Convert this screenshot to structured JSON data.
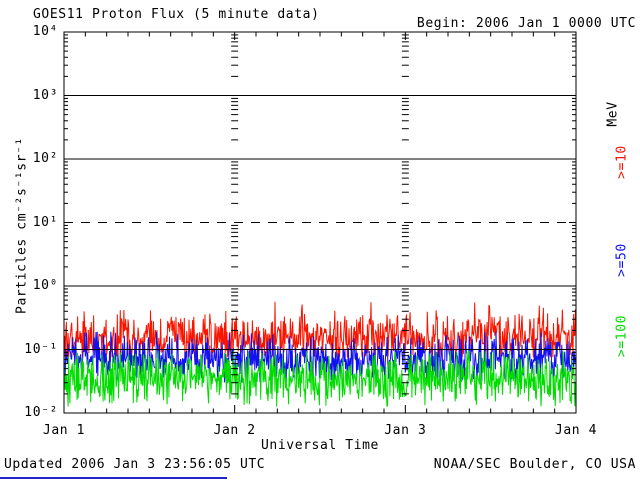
{
  "header": {
    "title": "GOES11 Proton Flux (5 minute data)",
    "begin_label": "Begin: 2006 Jan 1 0000 UTC"
  },
  "footer": {
    "updated": "Updated 2006 Jan  3 23:56:05 UTC",
    "credit": "NOAA/SEC Boulder, CO USA"
  },
  "decorations": {
    "bottom_link_line_color": "#2222cc"
  },
  "chart_data": {
    "type": "line",
    "title": "GOES11 Proton Flux (5 minute data)",
    "xlabel": "Universal Time",
    "ylabel": "Particles cm⁻²s⁻¹sr⁻¹",
    "x_tick_labels": [
      "Jan 1",
      "Jan 2",
      "Jan 3",
      "Jan 4"
    ],
    "y_tick_labels": [
      "10⁴",
      "10³",
      "10²",
      "10¹",
      "10⁰",
      "10⁻¹",
      "10⁻²"
    ],
    "y_tick_values": [
      10000,
      1000,
      100,
      10,
      1,
      0.1,
      0.01
    ],
    "ylim": [
      0.01,
      10000
    ],
    "x_days": 3,
    "points_per_day": 288,
    "grid": {
      "solid_y": [
        1000,
        100,
        1,
        0.1
      ],
      "dashed_y": [
        10
      ],
      "day_marker_ticks": [
        1,
        2
      ],
      "x_minor_per_day": 8
    },
    "right_labels": [
      {
        "text": "MeV",
        "color": "#000000"
      },
      {
        "text": ">=10",
        "color": "#f81500"
      },
      {
        "text": ">=50",
        "color": "#1010f0"
      },
      {
        "text": ">=100",
        "color": "#00dc00"
      }
    ],
    "series": [
      {
        "name": ">=10 MeV",
        "color": "#f81500",
        "log10_median": -0.82,
        "log10_min": -1.12,
        "log10_max": -0.24,
        "noise_dex": 0.2,
        "seed": 101
      },
      {
        "name": ">=50 MeV",
        "color": "#1010f0",
        "log10_median": -1.14,
        "log10_min": -1.52,
        "log10_max": -0.72,
        "noise_dex": 0.2,
        "seed": 202
      },
      {
        "name": ">=100 MeV",
        "color": "#00dc00",
        "log10_median": -1.46,
        "log10_min": -1.9,
        "log10_max": -1.02,
        "noise_dex": 0.22,
        "seed": 303
      }
    ]
  }
}
